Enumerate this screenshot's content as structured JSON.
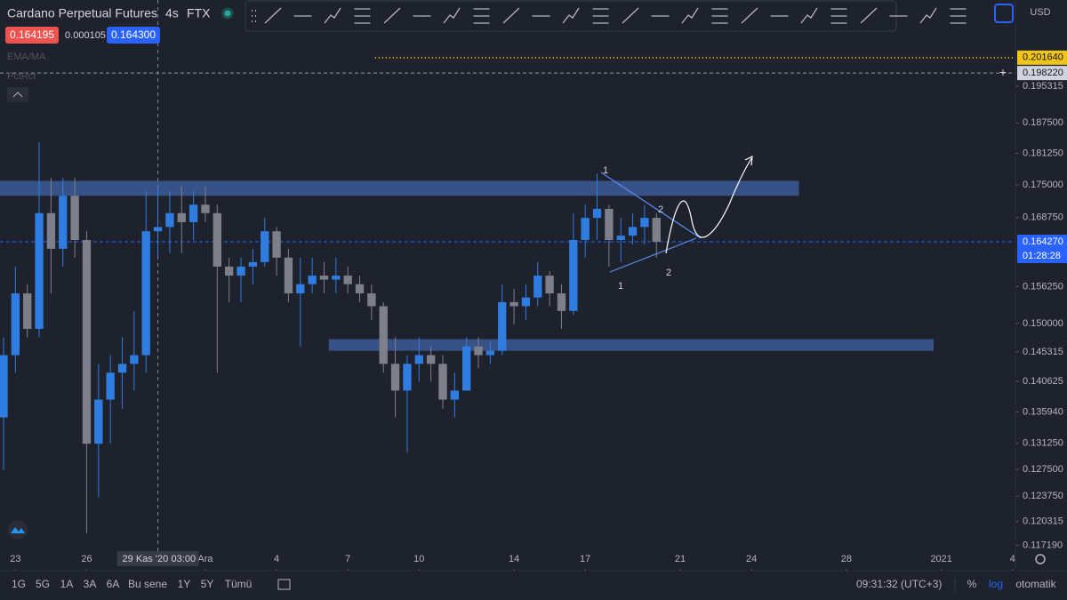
{
  "header": {
    "symbol": "Cardano Perpetual Futures",
    "interval": "4s",
    "exchange": "FTX",
    "bid": "0.164195",
    "spread": "0.000105",
    "ask": "0.164300",
    "indicators": [
      "EMA/MA",
      "PctRct"
    ]
  },
  "currency": "USD",
  "chart_data": {
    "type": "candlestick",
    "log_scale": true,
    "open": [
      0.1351,
      0.1448,
      0.1551,
      0.1491,
      0.1696,
      0.163,
      0.1729,
      0.1646,
      0.1312,
      0.1378,
      0.142,
      0.1434,
      0.1448,
      0.1662,
      0.167,
      0.1696,
      0.1679,
      0.1712,
      0.1696,
      0.1598,
      0.1582,
      0.1598,
      0.1606,
      0.1662,
      0.1614,
      0.1551,
      0.1567,
      0.1582,
      0.1575,
      0.1582,
      0.1567,
      0.1551,
      0.1529,
      0.1434,
      0.1392,
      0.1434,
      0.1448,
      0.1434,
      0.1378,
      0.1392,
      0.1462,
      0.1448,
      0.1455,
      0.1536,
      0.1529,
      0.1544,
      0.1582,
      0.1551,
      0.1521,
      0.1646,
      0.1687,
      0.1704,
      0.1646,
      0.1654,
      0.167,
      0.1687
    ],
    "high": [
      0.1477,
      0.1598,
      0.1567,
      0.1835,
      0.1764,
      0.1764,
      0.1764,
      0.1662,
      0.1434,
      0.1448,
      0.1477,
      0.1521,
      0.1738,
      0.1747,
      0.1738,
      0.1747,
      0.1738,
      0.1747,
      0.1712,
      0.1614,
      0.1614,
      0.163,
      0.1687,
      0.167,
      0.163,
      0.1614,
      0.1614,
      0.1606,
      0.1614,
      0.1598,
      0.1582,
      0.1567,
      0.1536,
      0.1477,
      0.1448,
      0.1477,
      0.1462,
      0.1448,
      0.142,
      0.1477,
      0.1477,
      0.147,
      0.1567,
      0.1559,
      0.1567,
      0.1606,
      0.159,
      0.1567,
      0.1696,
      0.1712,
      0.1772,
      0.1712,
      0.1687,
      0.1696,
      0.1712,
      0.1696
    ],
    "low": [
      0.1274,
      0.142,
      0.1477,
      0.1477,
      0.1551,
      0.1598,
      0.1614,
      0.1188,
      0.1236,
      0.1312,
      0.1364,
      0.1392,
      0.142,
      0.1614,
      0.1622,
      0.1622,
      0.1646,
      0.1679,
      0.142,
      0.1536,
      0.1536,
      0.1567,
      0.1598,
      0.1582,
      0.1536,
      0.1462,
      0.1551,
      0.1551,
      0.1551,
      0.1551,
      0.1536,
      0.1506,
      0.142,
      0.1351,
      0.1299,
      0.1406,
      0.1406,
      0.1364,
      0.1351,
      0.1392,
      0.1427,
      0.1434,
      0.1448,
      0.1499,
      0.1506,
      0.1529,
      0.1529,
      0.1491,
      0.1514,
      0.1614,
      0.1646,
      0.1598,
      0.1606,
      0.1638,
      0.1638,
      0.1614
    ],
    "close": [
      0.1448,
      0.1551,
      0.1491,
      0.1696,
      0.163,
      0.1729,
      0.1646,
      0.1312,
      0.1378,
      0.142,
      0.1434,
      0.1448,
      0.1662,
      0.167,
      0.1696,
      0.1679,
      0.1712,
      0.1696,
      0.1598,
      0.1582,
      0.1598,
      0.1606,
      0.1662,
      0.1614,
      0.1551,
      0.1567,
      0.1582,
      0.1575,
      0.1582,
      0.1567,
      0.1551,
      0.1529,
      0.1434,
      0.1392,
      0.1434,
      0.1448,
      0.1434,
      0.1378,
      0.1392,
      0.1462,
      0.1448,
      0.1455,
      0.1536,
      0.1529,
      0.1544,
      0.1582,
      0.1551,
      0.1521,
      0.1646,
      0.1687,
      0.1704,
      0.1646,
      0.1654,
      0.167,
      0.1687,
      0.16427
    ],
    "up_color": "#2f7de1",
    "down_color": "#7d808a",
    "xlim": [
      -0.3,
      85.24
    ],
    "ylim": [
      0.117,
      0.215
    ],
    "xticks": [
      {
        "value": 1,
        "label": "23"
      },
      {
        "value": 7,
        "label": "26"
      },
      {
        "value": 17,
        "label": "Ara"
      },
      {
        "value": 23,
        "label": "4"
      },
      {
        "value": 29,
        "label": "7"
      },
      {
        "value": 35,
        "label": "10"
      },
      {
        "value": 43,
        "label": "14"
      },
      {
        "value": 49,
        "label": "17"
      },
      {
        "value": 57,
        "label": "21"
      },
      {
        "value": 63,
        "label": "24"
      },
      {
        "value": 71,
        "label": "28"
      },
      {
        "value": 79,
        "label": "2021"
      },
      {
        "value": 85,
        "label": "4"
      }
    ],
    "yticks": [
      {
        "value": 0.195315,
        "label": "0.195315"
      },
      {
        "value": 0.1875,
        "label": "0.187500"
      },
      {
        "value": 0.18125,
        "label": "0.181250"
      },
      {
        "value": 0.175,
        "label": "0.175000"
      },
      {
        "value": 0.16875,
        "label": "0.168750"
      },
      {
        "value": 0.15625,
        "label": "0.156250"
      },
      {
        "value": 0.15,
        "label": "0.150000"
      },
      {
        "value": 0.145315,
        "label": "0.145315"
      },
      {
        "value": 0.140625,
        "label": "0.140625"
      },
      {
        "value": 0.13594,
        "label": "0.135940"
      },
      {
        "value": 0.13125,
        "label": "0.131250"
      },
      {
        "value": 0.1275,
        "label": "0.127500"
      },
      {
        "value": 0.12375,
        "label": "0.123750"
      },
      {
        "value": 0.120315,
        "label": "0.120315"
      },
      {
        "value": 0.11719,
        "label": "0.117190"
      }
    ],
    "zones": [
      {
        "x": [
          -0.3,
          67
        ],
        "y": [
          0.1729,
          0.1758
        ],
        "color": "#3d5a99"
      },
      {
        "x": [
          27.4,
          78.35
        ],
        "y": [
          0.1455,
          0.1474
        ],
        "color": "#3d5a99"
      }
    ],
    "price_lines": [
      {
        "value": 0.20164,
        "label": "0.201640",
        "color": "#f0c419",
        "start": 31.3
      },
      {
        "value": 0.19822,
        "label": "0.198220",
        "color": "#9598a1",
        "start": -0.3
      },
      {
        "value": 0.16427,
        "label": "0.164270",
        "color": "#2962ff",
        "start": -0.3
      }
    ],
    "countdown": "01:28:28",
    "crosshair": {
      "x": 13,
      "date": "29 Kas '20",
      "time": "03:00"
    },
    "annotations": [
      "1",
      "2",
      "1",
      "2"
    ]
  },
  "footer": {
    "ranges": [
      "1G",
      "5G",
      "1A",
      "3A",
      "6A",
      "Bu sene",
      "1Y",
      "5Y",
      "Tümü"
    ],
    "clock": "09:31:32 (UTC+3)",
    "options": [
      "%",
      "log",
      "otomatik"
    ]
  }
}
